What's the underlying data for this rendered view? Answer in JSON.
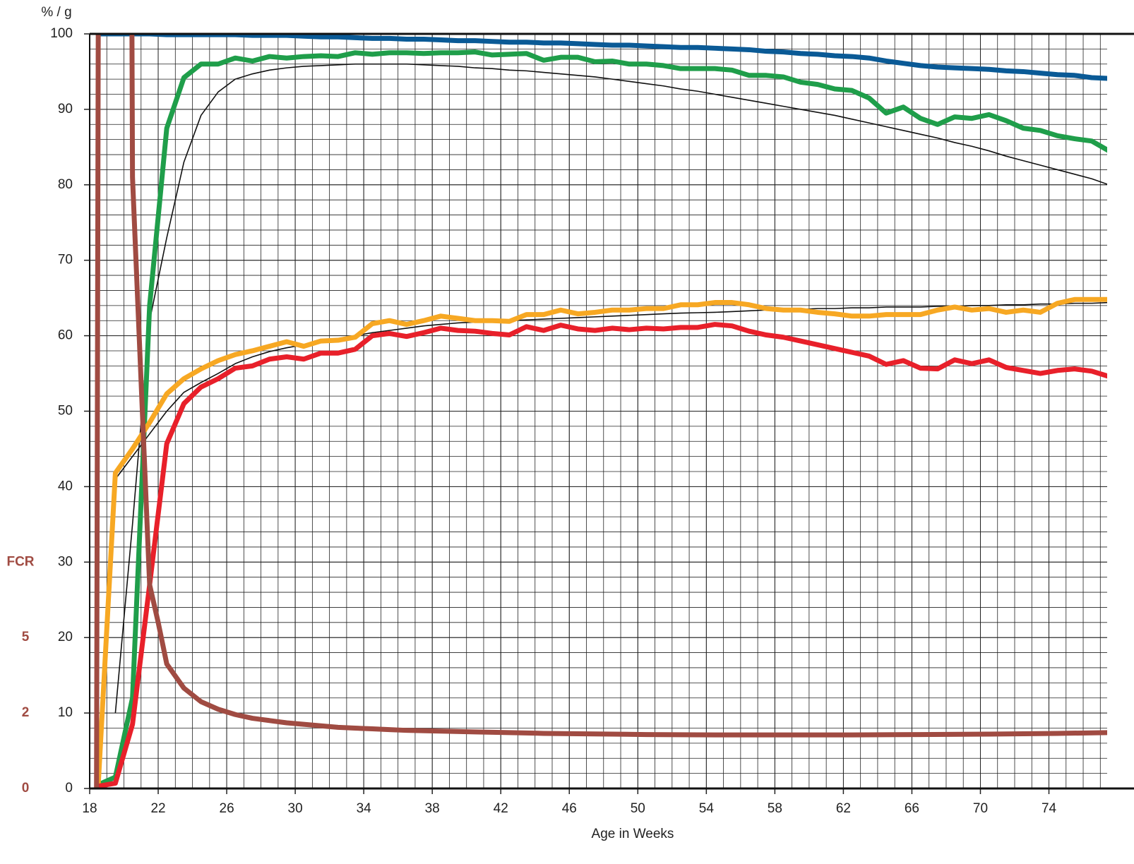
{
  "chart_data": {
    "type": "line",
    "ylabel": "% / g",
    "xlabel": "Age in Weeks",
    "y2label": "FCR",
    "xlim": [
      18,
      77.4
    ],
    "ylim": [
      0,
      100
    ],
    "xticks": [
      18,
      22,
      26,
      30,
      34,
      38,
      42,
      46,
      50,
      54,
      58,
      62,
      66,
      70,
      74
    ],
    "yticks": [
      0,
      10,
      20,
      30,
      40,
      50,
      60,
      70,
      80,
      90,
      100
    ],
    "y2ticks": [
      0,
      2,
      5
    ],
    "grid": true,
    "minor_grid": true,
    "x": [
      18.5,
      19.5,
      20.5,
      21.5,
      22.5,
      23.5,
      24.5,
      25.5,
      26.5,
      27.5,
      28.5,
      29.5,
      30.5,
      31.5,
      32.5,
      33.5,
      34.5,
      35.5,
      36.5,
      37.5,
      38.5,
      39.5,
      40.5,
      41.5,
      42.5,
      43.5,
      44.5,
      45.5,
      46.5,
      47.5,
      48.5,
      49.5,
      50.5,
      51.5,
      52.5,
      53.5,
      54.5,
      55.5,
      56.5,
      57.5,
      58.5,
      59.5,
      60.5,
      61.5,
      62.5,
      63.5,
      64.5,
      65.5,
      66.5,
      67.5,
      68.5,
      69.5,
      70.5,
      71.5,
      72.5,
      73.5,
      74.5,
      75.5,
      76.5,
      77.5
    ],
    "series": [
      {
        "color": "#0a5a96",
        "width": 7,
        "values": [
          100,
          100,
          100,
          100,
          99.9,
          99.9,
          99.9,
          99.9,
          99.9,
          99.8,
          99.8,
          99.8,
          99.7,
          99.6,
          99.6,
          99.5,
          99.4,
          99.4,
          99.3,
          99.3,
          99.2,
          99.1,
          99.1,
          99,
          98.9,
          98.9,
          98.8,
          98.8,
          98.7,
          98.6,
          98.5,
          98.5,
          98.4,
          98.3,
          98.2,
          98.2,
          98.1,
          98,
          97.9,
          97.7,
          97.6,
          97.4,
          97.3,
          97.1,
          97,
          96.8,
          96.4,
          96.1,
          95.8,
          95.6,
          95.5,
          95.4,
          95.3,
          95.1,
          95,
          94.8,
          94.6,
          94.5,
          94.2,
          94.1
        ]
      },
      {
        "color": "#111111",
        "width": 1.6,
        "values": [
          null,
          10,
          35,
          62,
          73,
          83,
          89.2,
          92.3,
          94,
          94.7,
          95.2,
          95.5,
          95.7,
          95.8,
          95.9,
          96,
          96,
          96,
          96,
          95.9,
          95.8,
          95.7,
          95.5,
          95.4,
          95.2,
          95.1,
          94.9,
          94.7,
          94.5,
          94.3,
          94,
          93.7,
          93.4,
          93.1,
          92.7,
          92.4,
          92,
          91.6,
          91.2,
          90.8,
          90.4,
          90,
          89.6,
          89.2,
          88.7,
          88.2,
          87.7,
          87.2,
          86.7,
          86.2,
          85.6,
          85.1,
          84.5,
          83.8,
          83.2,
          82.6,
          82,
          81.4,
          80.8,
          80
        ]
      },
      {
        "color": "#1f9e4a",
        "width": 7,
        "values": [
          0.5,
          1.5,
          12,
          64,
          87.5,
          94.2,
          96,
          96,
          96.8,
          96.4,
          97,
          96.8,
          97,
          97.1,
          97,
          97.5,
          97.3,
          97.5,
          97.5,
          97.4,
          97.5,
          97.5,
          97.6,
          97.2,
          97.3,
          97.4,
          96.5,
          96.9,
          96.9,
          96.3,
          96.4,
          96,
          96,
          95.8,
          95.4,
          95.4,
          95.4,
          95.2,
          94.5,
          94.5,
          94.3,
          93.6,
          93.3,
          92.7,
          92.5,
          91.5,
          89.5,
          90.3,
          88.8,
          88,
          89,
          88.8,
          89.3,
          88.5,
          87.5,
          87.2,
          86.5,
          86.1,
          85.8,
          84.5
        ]
      },
      {
        "color": "#111111",
        "width": 1.6,
        "values": [
          null,
          41,
          44,
          47,
          50,
          52.5,
          53.8,
          55,
          56.3,
          57.2,
          57.9,
          58.4,
          58.8,
          59.3,
          59.6,
          60,
          60.4,
          60.7,
          61,
          61.3,
          61.5,
          61.7,
          61.8,
          61.9,
          62,
          62.1,
          62.2,
          62.3,
          62.4,
          62.5,
          62.6,
          62.7,
          62.8,
          62.9,
          63,
          63.05,
          63.1,
          63.2,
          63.3,
          63.4,
          63.5,
          63.5,
          63.6,
          63.6,
          63.7,
          63.7,
          63.8,
          63.8,
          63.8,
          63.9,
          63.9,
          64,
          64,
          64.1,
          64.1,
          64.2,
          64.2,
          64.3,
          64.3,
          64.4
        ]
      },
      {
        "color": "#f7a823",
        "width": 7,
        "values": [
          0.5,
          41.8,
          45,
          48.5,
          52.3,
          54.3,
          55.6,
          56.7,
          57.5,
          58,
          58.6,
          59.2,
          58.6,
          59.3,
          59.4,
          59.8,
          61.6,
          62,
          61.5,
          62,
          62.6,
          62.3,
          62,
          62,
          61.9,
          62.8,
          62.8,
          63.4,
          62.9,
          63.1,
          63.4,
          63.4,
          63.6,
          63.6,
          64.1,
          64.1,
          64.4,
          64.4,
          64.1,
          63.6,
          63.4,
          63.4,
          63.1,
          62.9,
          62.6,
          62.6,
          62.8,
          62.8,
          62.8,
          63.4,
          63.8,
          63.4,
          63.6,
          63.1,
          63.4,
          63.1,
          64.3,
          64.8,
          64.8,
          64.8
        ]
      },
      {
        "color": "#e8202a",
        "width": 7,
        "values": [
          0.3,
          0.7,
          8.5,
          27,
          45.7,
          51,
          53.2,
          54.3,
          55.7,
          56,
          56.9,
          57.2,
          56.9,
          57.7,
          57.7,
          58.2,
          60,
          60.3,
          59.9,
          60.4,
          61,
          60.7,
          60.6,
          60.3,
          60.1,
          61.2,
          60.7,
          61.4,
          60.9,
          60.7,
          61,
          60.8,
          61,
          60.9,
          61.1,
          61.1,
          61.5,
          61.3,
          60.6,
          60.1,
          59.8,
          59.3,
          58.8,
          58.3,
          57.8,
          57.3,
          56.2,
          56.7,
          55.7,
          55.6,
          56.8,
          56.3,
          56.8,
          55.8,
          55.4,
          55,
          55.4,
          55.6,
          55.3,
          54.6
        ]
      },
      {
        "color": "#a04b42",
        "width": 7,
        "x": [
          18.4,
          18.6,
          20.3,
          20.5,
          21.5,
          22,
          22.5,
          23.5,
          24.5,
          25.5,
          26.5,
          27.5,
          28.5,
          29.5,
          30.5,
          31.5,
          32.5,
          33.5,
          34.5,
          35.5,
          36.5,
          38.5,
          40.5,
          42.5,
          44.5,
          46.5,
          48.5,
          50.5,
          54.5,
          58.5,
          62.5,
          66.5,
          70.5,
          74.5,
          77.5
        ],
        "values": [
          0,
          200,
          200,
          81,
          27,
          22,
          16.5,
          13.3,
          11.5,
          10.5,
          9.8,
          9.3,
          9,
          8.7,
          8.5,
          8.3,
          8.1,
          8,
          7.9,
          7.8,
          7.7,
          7.6,
          7.5,
          7.4,
          7.3,
          7.25,
          7.2,
          7.15,
          7.1,
          7.1,
          7.1,
          7.15,
          7.2,
          7.3,
          7.4
        ]
      }
    ]
  }
}
